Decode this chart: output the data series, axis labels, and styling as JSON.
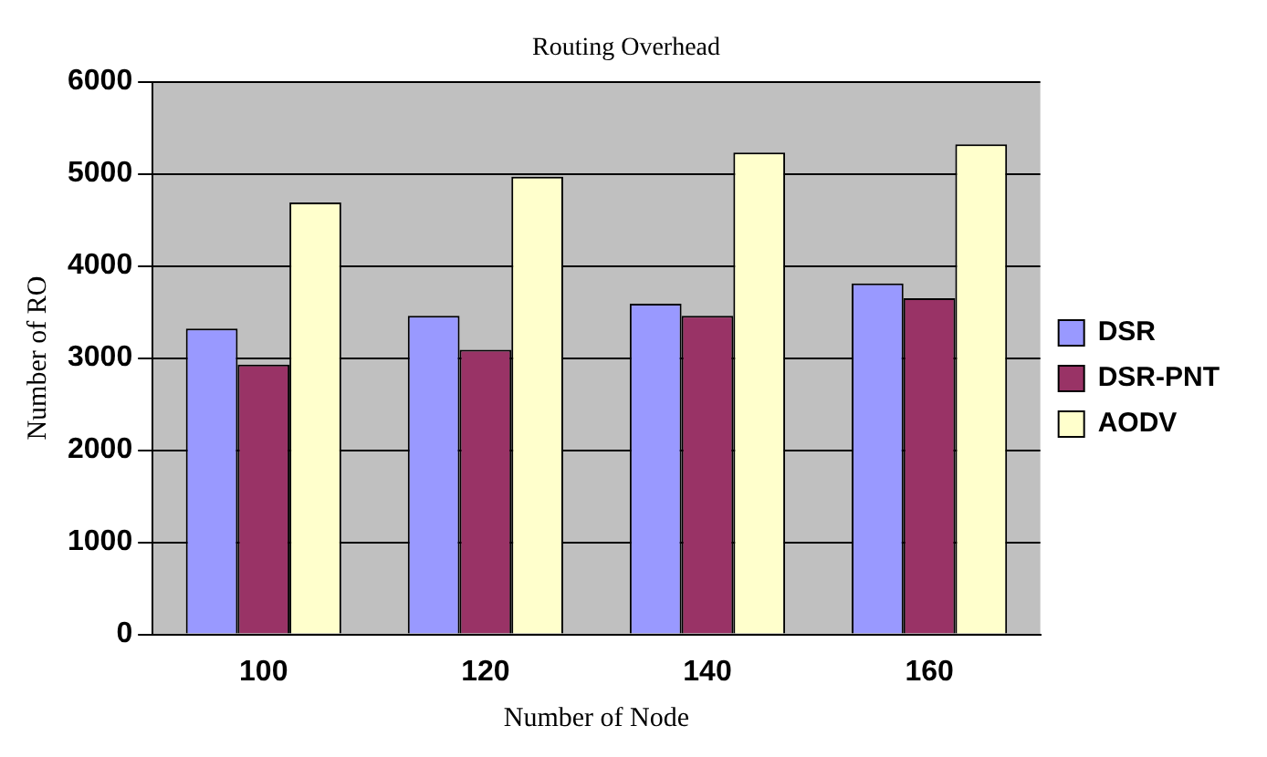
{
  "chart_data": {
    "type": "bar",
    "title": "Routing Overhead",
    "xlabel": "Number of Node",
    "ylabel": "Number of RO",
    "categories": [
      "100",
      "120",
      "140",
      "160"
    ],
    "series": [
      {
        "name": "DSR",
        "color": "#9999ff",
        "values": [
          3320,
          3460,
          3590,
          3810
        ]
      },
      {
        "name": "DSR-PNT",
        "color": "#993366",
        "values": [
          2930,
          3090,
          3460,
          3650
        ]
      },
      {
        "name": "AODV",
        "color": "#ffffcc",
        "values": [
          4690,
          4970,
          5230,
          5320
        ]
      }
    ],
    "ylim": [
      0,
      6000
    ],
    "yticks": [
      0,
      1000,
      2000,
      3000,
      4000,
      5000,
      6000
    ],
    "grid": "y",
    "legend": "right"
  }
}
